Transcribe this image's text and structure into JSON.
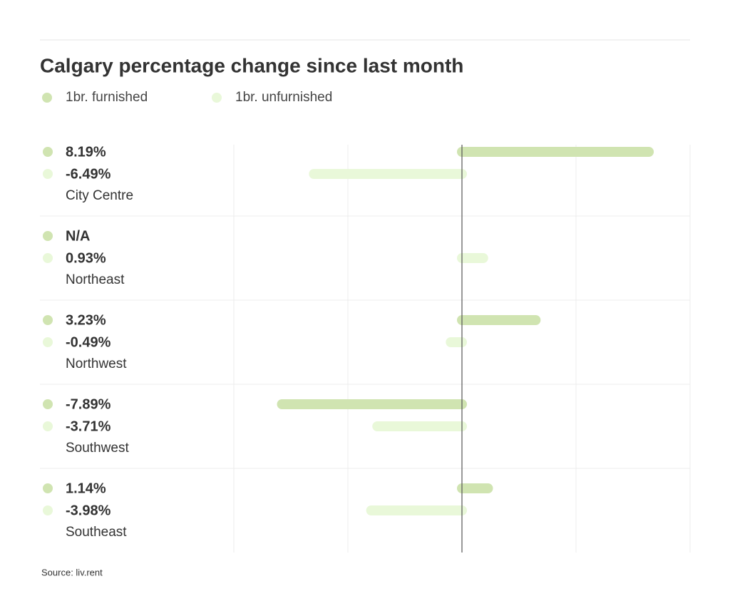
{
  "chart_data": {
    "type": "diverging-bar",
    "title": "Calgary percentage change since last month",
    "categories": [
      "City Centre",
      "Northeast",
      "Northwest",
      "Southwest",
      "Southeast"
    ],
    "series": [
      {
        "name": "1br. furnished",
        "color": "#d0e4b1",
        "values": [
          8.19,
          null,
          3.23,
          -7.89,
          1.14
        ],
        "value_labels": [
          "8.19%",
          "N/A",
          "3.23%",
          "-7.89%",
          "1.14%"
        ]
      },
      {
        "name": "1br. unfurnished",
        "color": "#e9f8d9",
        "values": [
          -6.49,
          0.93,
          -0.49,
          -3.71,
          -3.98
        ],
        "value_labels": [
          "-6.49%",
          "0.93%",
          "-0.49%",
          "-3.71%",
          "-3.98%"
        ]
      }
    ],
    "xlim": [
      -10,
      10
    ],
    "xticks": [
      -10,
      -5,
      0,
      5,
      10
    ],
    "grid": true,
    "source": "Source: liv.rent"
  }
}
